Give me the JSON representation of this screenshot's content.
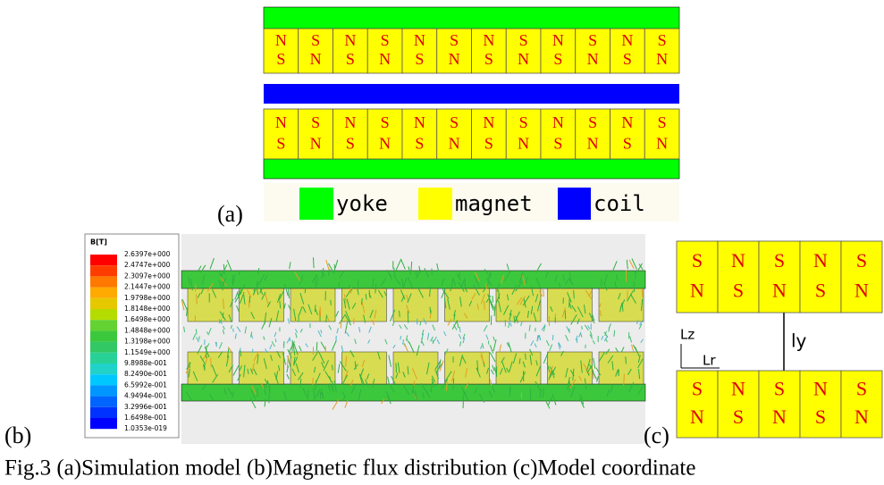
{
  "panel_a": {
    "label": "(a)",
    "top_row": {
      "upper": [
        "N",
        "S",
        "N",
        "S",
        "N",
        "S",
        "N",
        "S",
        "N",
        "S",
        "N",
        "S"
      ],
      "lower": [
        "S",
        "N",
        "S",
        "N",
        "S",
        "N",
        "S",
        "N",
        "S",
        "N",
        "S",
        "N"
      ]
    },
    "bottom_row": {
      "upper": [
        "N",
        "S",
        "N",
        "S",
        "N",
        "S",
        "N",
        "S",
        "N",
        "S",
        "N",
        "S"
      ],
      "lower": [
        "S",
        "N",
        "S",
        "N",
        "S",
        "N",
        "S",
        "N",
        "S",
        "N",
        "S",
        "N"
      ]
    },
    "legend": [
      "yoke",
      "magnet",
      "coil"
    ]
  },
  "panel_b": {
    "label": "(b)",
    "colorbar_title": "B[T]",
    "colorbar_labels": [
      "2.6397e+000",
      "2.4747e+000",
      "2.3097e+000",
      "2.1447e+000",
      "1.9798e+000",
      "1.8148e+000",
      "1.6498e+000",
      "1.4848e+000",
      "1.3198e+000",
      "1.1549e+000",
      "9.8988e-001",
      "8.2490e-001",
      "6.5992e-001",
      "4.9494e-001",
      "3.2996e-001",
      "1.6498e-001",
      "1.0353e-019"
    ]
  },
  "panel_c": {
    "label": "(c)",
    "top_row": {
      "upper": [
        "S",
        "N",
        "S",
        "N",
        "S"
      ],
      "lower": [
        "N",
        "S",
        "N",
        "S",
        "N"
      ]
    },
    "bottom_row": {
      "upper": [
        "S",
        "N",
        "S",
        "N",
        "S"
      ],
      "lower": [
        "N",
        "S",
        "N",
        "S",
        "N"
      ]
    },
    "gap_label": "ly",
    "z_label": "Lz",
    "r_label": "Lr"
  },
  "caption": "Fig.3 (a)Simulation model (b)Magnetic flux distribution (c)Model coordinate"
}
